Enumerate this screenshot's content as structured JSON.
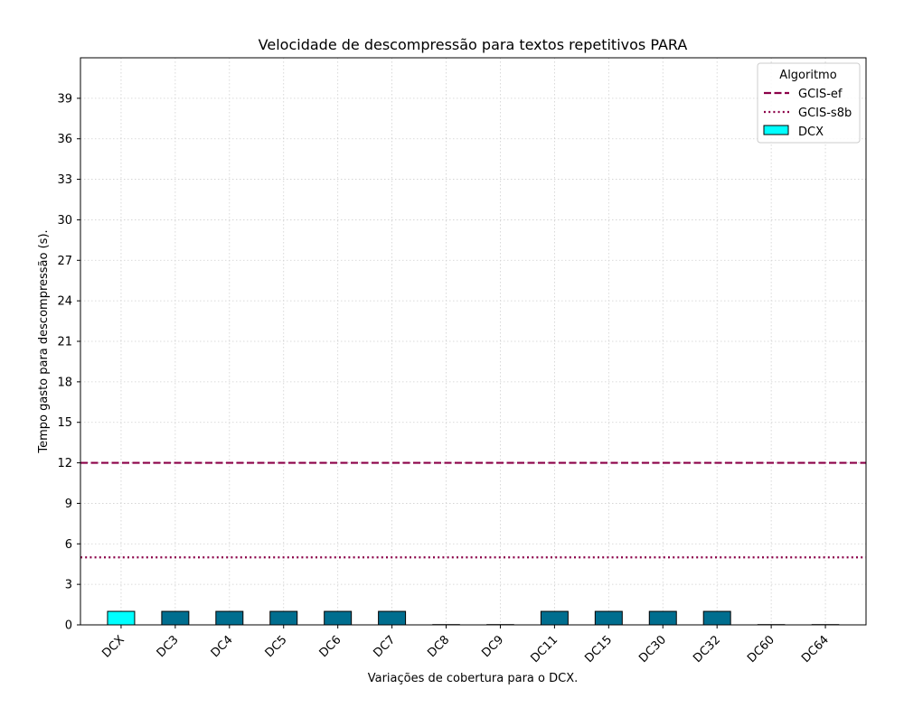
{
  "chart_data": {
    "type": "bar",
    "title": "Velocidade de descompressão para textos repetitivos PARA",
    "xlabel": "Variações de cobertura para o DCX.",
    "ylabel": "Tempo gasto para descompressão (s).",
    "categories": [
      "DCX",
      "DC3",
      "DC4",
      "DC5",
      "DC6",
      "DC7",
      "DC8",
      "DC9",
      "DC11",
      "DC15",
      "DC30",
      "DC32",
      "DC60",
      "DC64"
    ],
    "values": [
      1,
      1,
      1,
      1,
      1,
      1,
      0,
      0,
      1,
      1,
      1,
      1,
      0,
      0
    ],
    "bar_colors": [
      "#00ffff",
      "#006e8f",
      "#006e8f",
      "#006e8f",
      "#006e8f",
      "#006e8f",
      "#006e8f",
      "#006e8f",
      "#006e8f",
      "#006e8f",
      "#006e8f",
      "#006e8f",
      "#006e8f",
      "#006e8f"
    ],
    "ylim": [
      0,
      42
    ],
    "yticks": [
      0,
      3,
      6,
      9,
      12,
      15,
      18,
      21,
      24,
      27,
      30,
      33,
      36,
      39
    ],
    "grid": true,
    "reference_lines": [
      {
        "name": "GCIS-ef",
        "value": 12,
        "style": "dashed",
        "color": "#8b0048"
      },
      {
        "name": "GCIS-s8b",
        "value": 5,
        "style": "dotted",
        "color": "#8b0048"
      }
    ],
    "legend": {
      "title": "Algoritmo",
      "placement": "top-right",
      "entries": [
        {
          "label": "GCIS-ef",
          "kind": "dashed-line",
          "color": "#8b0048"
        },
        {
          "label": "GCIS-s8b",
          "kind": "dotted-line",
          "color": "#8b0048"
        },
        {
          "label": "DCX",
          "kind": "patch",
          "color": "#00ffff"
        }
      ]
    }
  }
}
